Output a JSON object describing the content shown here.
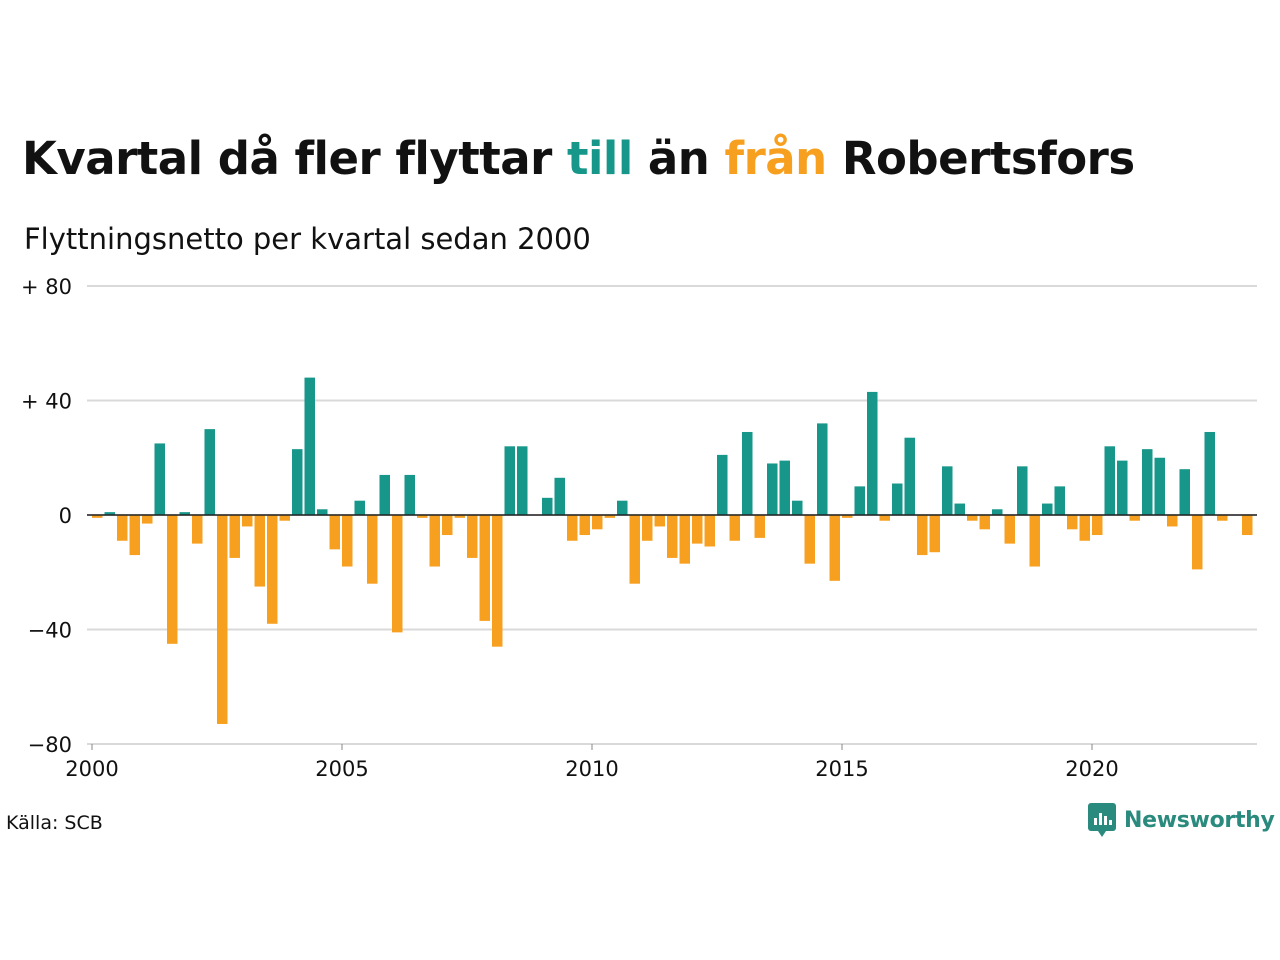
{
  "header": {
    "title_parts": [
      "Kvartal då fler flyttar ",
      "till",
      " än ",
      "från",
      " Robertsfors"
    ],
    "subtitle": "Flyttningsnetto per kvartal sedan 2000"
  },
  "footer": {
    "source": "Källa: SCB",
    "brand": "Newsworthy"
  },
  "colors": {
    "positive": "#17968a",
    "negative": "#f7a020",
    "grid": "#d9d9d9",
    "text": "#111111",
    "brand": "#2a8a7d"
  },
  "chart_data": {
    "type": "bar",
    "title": "Kvartal då fler flyttar till än från Robertsfors",
    "subtitle": "Flyttningsnetto per kvartal sedan 2000",
    "xlabel": "",
    "ylabel": "",
    "start_year": 2000,
    "start_quarter": 1,
    "x_ticks": [
      "2000",
      "2005",
      "2010",
      "2015",
      "2020"
    ],
    "y_ticks": [
      80,
      40,
      0,
      -40,
      -80
    ],
    "y_tick_labels": [
      "+ 80",
      "+ 40",
      "0",
      "−40",
      "−80"
    ],
    "ylim": [
      -80,
      80
    ],
    "grid": true,
    "values": [
      -1,
      1,
      -9,
      -14,
      -3,
      25,
      -45,
      1,
      -10,
      30,
      -73,
      -15,
      -4,
      -25,
      -38,
      -2,
      23,
      48,
      2,
      -12,
      -18,
      5,
      -24,
      14,
      -41,
      14,
      -1,
      -18,
      -7,
      -1,
      -15,
      -37,
      -46,
      24,
      24,
      0,
      6,
      13,
      -9,
      -7,
      -5,
      -1,
      5,
      -24,
      -9,
      -4,
      -15,
      -17,
      -10,
      -11,
      21,
      -9,
      29,
      -8,
      18,
      19,
      5,
      -17,
      32,
      -23,
      -1,
      10,
      43,
      -2,
      11,
      27,
      -14,
      -13,
      17,
      4,
      -2,
      -5,
      2,
      -10,
      17,
      -18,
      4,
      10,
      -5,
      -9,
      -7,
      24,
      19,
      -2,
      23,
      20,
      -4,
      16,
      -19,
      29,
      -2,
      0,
      -7
    ]
  }
}
